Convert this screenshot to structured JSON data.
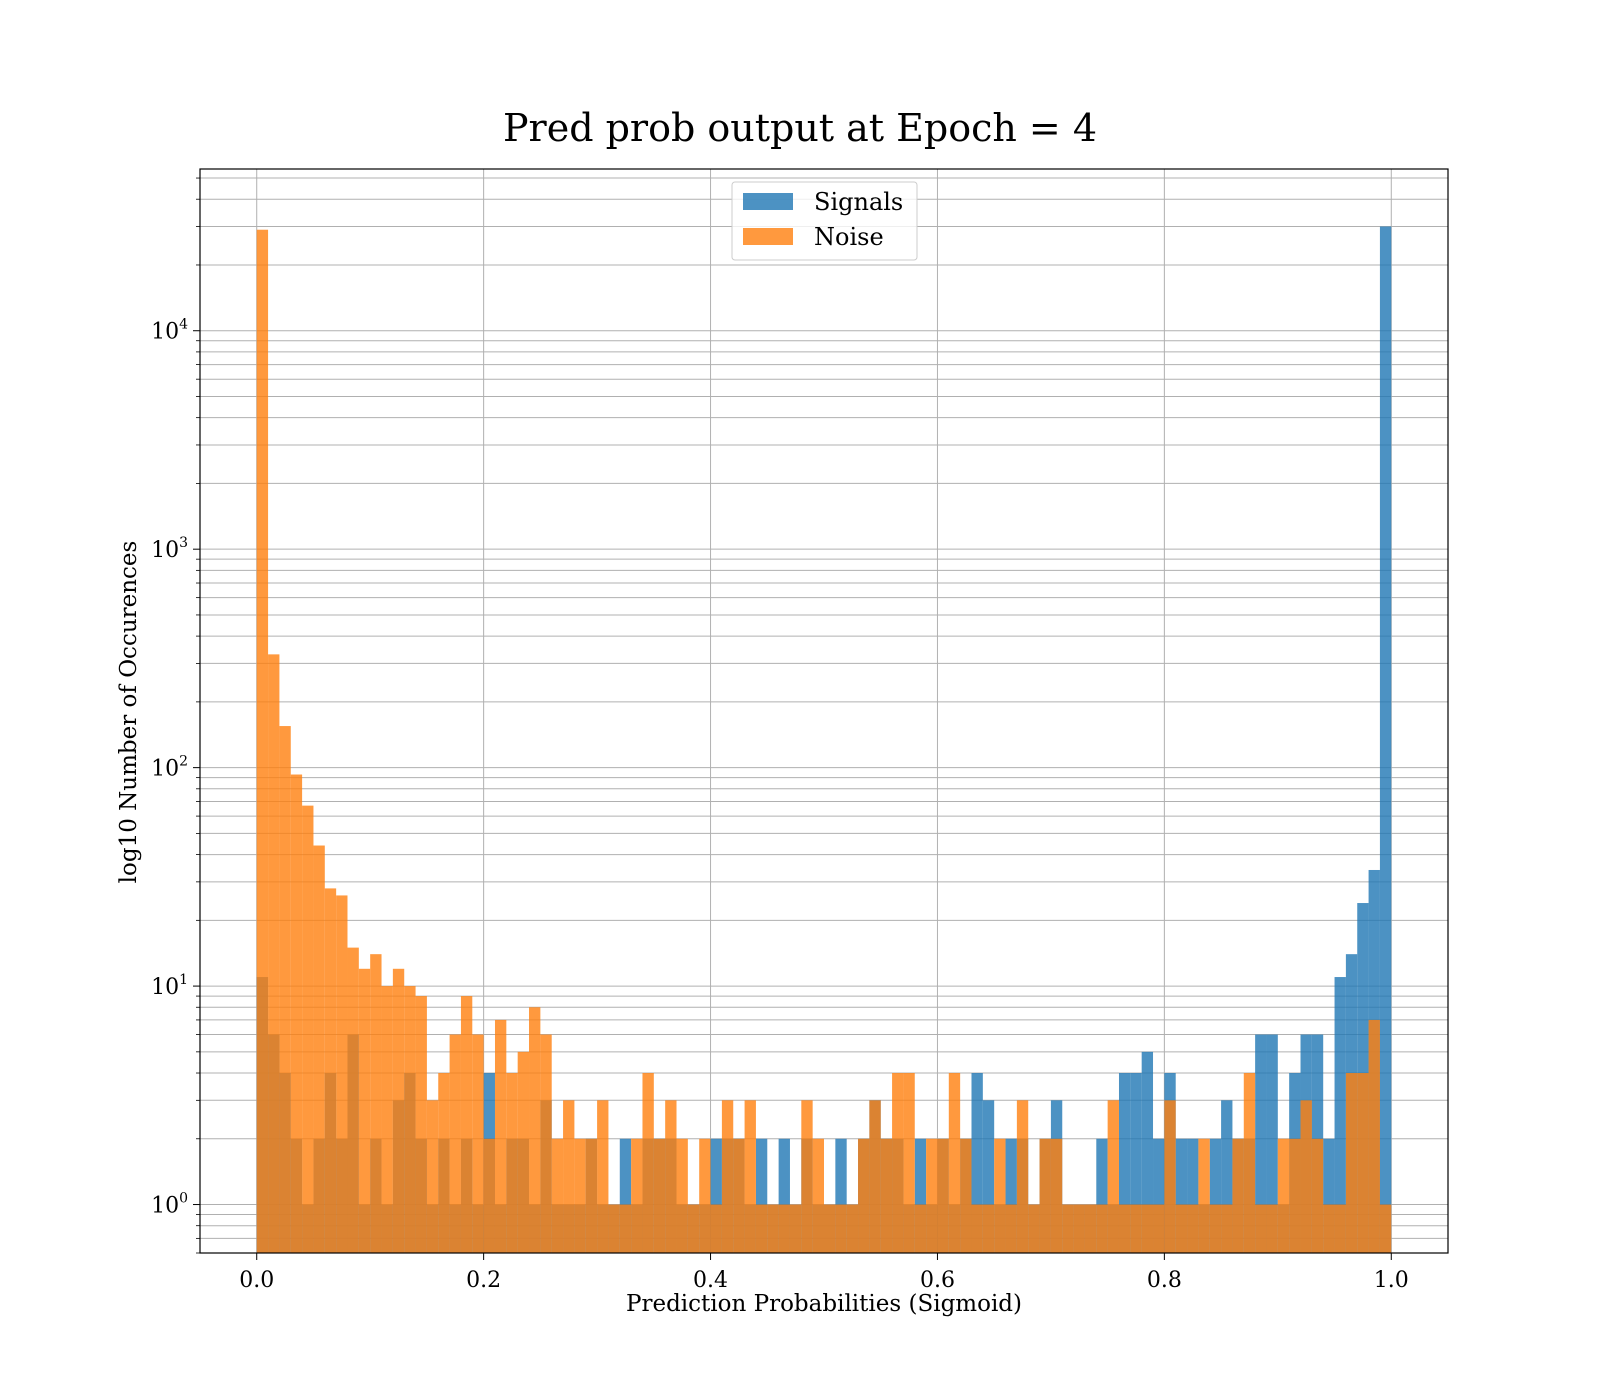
{
  "chart_data": {
    "type": "bar",
    "title": "Pred prob output at Epoch = 4",
    "xlabel": "Prediction Probabilities (Sigmoid)",
    "ylabel": "log10 Number of Occurences",
    "xlim": [
      -0.05,
      1.05
    ],
    "ylim": [
      0.6,
      55000
    ],
    "yscale": "log",
    "grid": true,
    "bins": 100,
    "x_range": [
      0,
      1
    ],
    "xticks": [
      "0.0",
      "0.2",
      "0.4",
      "0.6",
      "0.8",
      "1.0"
    ],
    "yticks": [
      {
        "base": "10",
        "exp": "0",
        "value": 1
      },
      {
        "base": "10",
        "exp": "1",
        "value": 10
      },
      {
        "base": "10",
        "exp": "2",
        "value": 100
      },
      {
        "base": "10",
        "exp": "3",
        "value": 1000
      },
      {
        "base": "10",
        "exp": "4",
        "value": 10000
      }
    ],
    "legend": {
      "placement": "upper center"
    },
    "colors": {
      "Signals": "#1f77b4",
      "Noise": "#ff7f0e",
      "grid": "#b0b0b0"
    },
    "series": [
      {
        "name": "Signals",
        "color": "#1f77b4",
        "values": [
          11,
          6,
          4,
          2,
          1,
          2,
          4,
          2,
          6,
          1,
          2,
          1,
          3,
          4,
          2,
          1,
          2,
          1,
          2,
          1,
          4,
          1,
          2,
          2,
          1,
          3,
          1,
          1,
          1,
          2,
          1,
          1,
          2,
          1,
          2,
          2,
          2,
          1,
          1,
          1,
          2,
          2,
          2,
          1,
          2,
          1,
          2,
          1,
          2,
          1,
          1,
          2,
          1,
          2,
          3,
          2,
          2,
          1,
          2,
          1,
          2,
          1,
          2,
          4,
          3,
          1,
          2,
          2,
          1,
          2,
          3,
          1,
          1,
          1,
          2,
          1,
          4,
          4,
          5,
          2,
          4,
          2,
          2,
          1,
          2,
          3,
          2,
          2,
          6,
          6,
          1,
          4,
          6,
          6,
          2,
          11,
          14,
          24,
          34,
          30000
        ]
      },
      {
        "name": "Noise",
        "color": "#ff7f0e",
        "values": [
          29000,
          330,
          155,
          93,
          67,
          44,
          28,
          26,
          15,
          12,
          14,
          10,
          12,
          10,
          9,
          3,
          4,
          6,
          9,
          6,
          2,
          7,
          4,
          5,
          8,
          6,
          2,
          3,
          2,
          2,
          3,
          1,
          1,
          2,
          4,
          2,
          3,
          2,
          1,
          2,
          1,
          3,
          2,
          3,
          1,
          1,
          1,
          1,
          3,
          2,
          1,
          1,
          1,
          2,
          3,
          2,
          4,
          4,
          1,
          2,
          2,
          4,
          2,
          1,
          1,
          2,
          1,
          3,
          1,
          2,
          2,
          1,
          1,
          1,
          1,
          3,
          1,
          1,
          1,
          1,
          3,
          1,
          1,
          2,
          1,
          1,
          2,
          4,
          1,
          1,
          2,
          2,
          3,
          2,
          1,
          1,
          4,
          4,
          7,
          1
        ]
      }
    ]
  }
}
